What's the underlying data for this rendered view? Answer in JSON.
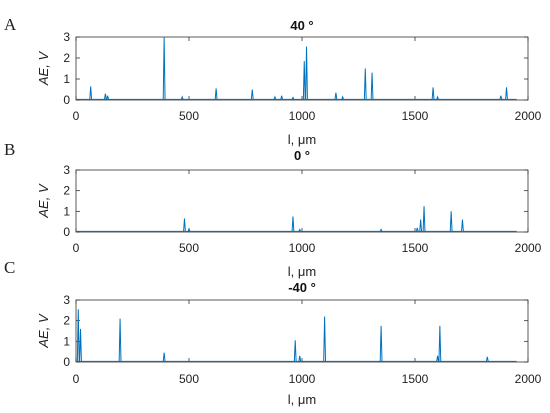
{
  "chart_data": [
    {
      "type": "line",
      "panel_letter": "A",
      "title": "40 °",
      "xlabel": "l, μm",
      "ylabel": "AE, V",
      "xlim": [
        0,
        2000
      ],
      "ylim": [
        0,
        3
      ],
      "xticks": [
        "0",
        "500",
        "1000",
        "1500",
        "2000"
      ],
      "yticks": [
        "0",
        "1",
        "2",
        "3"
      ],
      "x_end": 1950,
      "color": "#0072bd",
      "peaks": [
        {
          "x": 65,
          "y": 0.65
        },
        {
          "x": 130,
          "y": 0.3
        },
        {
          "x": 140,
          "y": 0.2
        },
        {
          "x": 390,
          "y": 3.0
        },
        {
          "x": 470,
          "y": 0.15
        },
        {
          "x": 620,
          "y": 0.55
        },
        {
          "x": 780,
          "y": 0.5
        },
        {
          "x": 880,
          "y": 0.15
        },
        {
          "x": 910,
          "y": 0.2
        },
        {
          "x": 960,
          "y": 0.12
        },
        {
          "x": 1010,
          "y": 1.85
        },
        {
          "x": 1020,
          "y": 2.55
        },
        {
          "x": 1150,
          "y": 0.35
        },
        {
          "x": 1180,
          "y": 0.15
        },
        {
          "x": 1280,
          "y": 1.5
        },
        {
          "x": 1310,
          "y": 1.3
        },
        {
          "x": 1580,
          "y": 0.6
        },
        {
          "x": 1600,
          "y": 0.15
        },
        {
          "x": 1880,
          "y": 0.2
        },
        {
          "x": 1905,
          "y": 0.6
        }
      ]
    },
    {
      "type": "line",
      "panel_letter": "B",
      "title": "0 °",
      "xlabel": "l, μm",
      "ylabel": "AE, V",
      "xlim": [
        0,
        2000
      ],
      "ylim": [
        0,
        3
      ],
      "xticks": [
        "0",
        "500",
        "1000",
        "1500",
        "2000"
      ],
      "yticks": [
        "0",
        "1",
        "2",
        "3"
      ],
      "x_end": 1950,
      "color": "#0072bd",
      "peaks": [
        {
          "x": 480,
          "y": 0.65
        },
        {
          "x": 500,
          "y": 0.15
        },
        {
          "x": 960,
          "y": 0.75
        },
        {
          "x": 990,
          "y": 0.12
        },
        {
          "x": 1350,
          "y": 0.12
        },
        {
          "x": 1510,
          "y": 0.2
        },
        {
          "x": 1525,
          "y": 0.6
        },
        {
          "x": 1540,
          "y": 1.25
        },
        {
          "x": 1660,
          "y": 1.0
        },
        {
          "x": 1710,
          "y": 0.6
        }
      ]
    },
    {
      "type": "line",
      "panel_letter": "C",
      "title": "-40 °",
      "xlabel": "l, μm",
      "ylabel": "AE, V",
      "xlim": [
        0,
        2000
      ],
      "ylim": [
        0,
        3
      ],
      "xticks": [
        "0",
        "500",
        "1000",
        "1500",
        "2000"
      ],
      "yticks": [
        "0",
        "1",
        "2",
        "3"
      ],
      "x_end": 1950,
      "color": "#0072bd",
      "peaks": [
        {
          "x": 10,
          "y": 2.55
        },
        {
          "x": 20,
          "y": 1.6
        },
        {
          "x": 195,
          "y": 2.1
        },
        {
          "x": 390,
          "y": 0.45
        },
        {
          "x": 970,
          "y": 1.05
        },
        {
          "x": 990,
          "y": 0.3
        },
        {
          "x": 1100,
          "y": 2.2
        },
        {
          "x": 1350,
          "y": 1.75
        },
        {
          "x": 1600,
          "y": 0.3
        },
        {
          "x": 1610,
          "y": 1.75
        },
        {
          "x": 1820,
          "y": 0.25
        }
      ]
    }
  ]
}
